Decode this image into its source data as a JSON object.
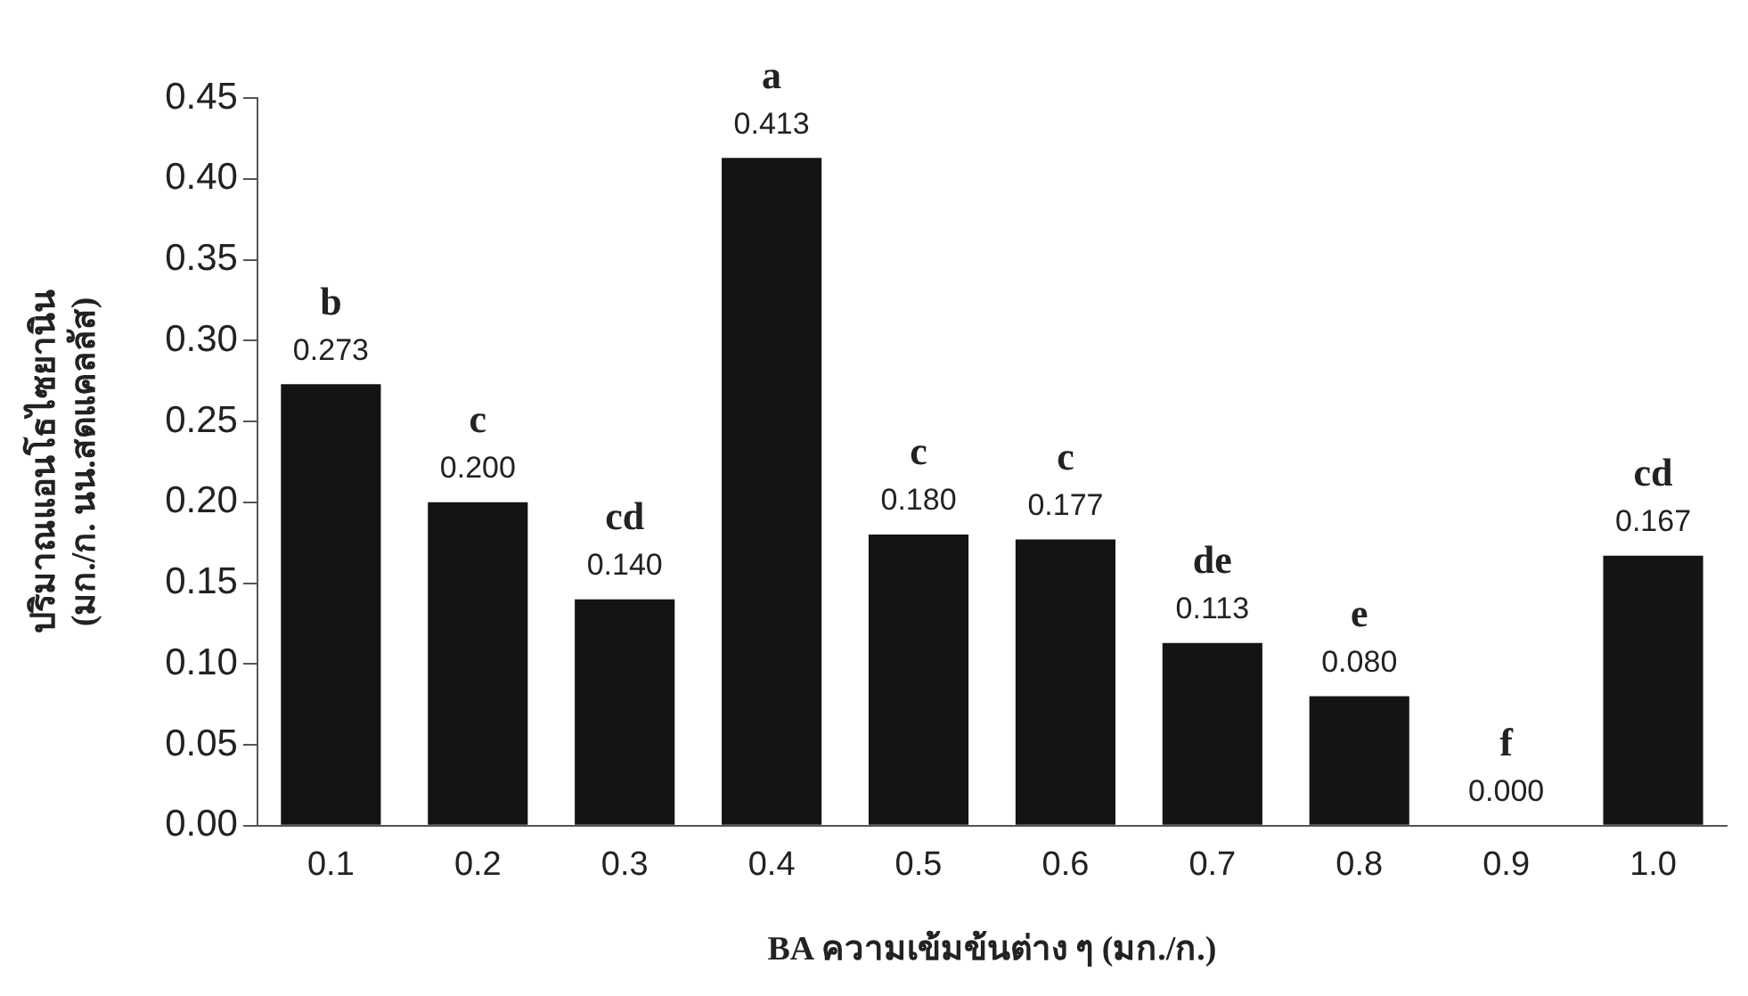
{
  "chart_data": {
    "type": "bar",
    "xlabel": "BA ความเข้มข้นต่าง ๆ (มก./ก.)",
    "ylabel": "ปริมาณแอนโธไซยานิน\n(มก./ก. นน.สดแคลลัส)",
    "categories": [
      "0.1",
      "0.2",
      "0.3",
      "0.4",
      "0.5",
      "0.6",
      "0.7",
      "0.8",
      "0.9",
      "1.0"
    ],
    "values": [
      0.273,
      0.2,
      0.14,
      0.413,
      0.18,
      0.177,
      0.113,
      0.08,
      0,
      0.167
    ],
    "value_labels": [
      "0.273",
      "0.200",
      "0.140",
      "0.413",
      "0.180",
      "0.177",
      "0.113",
      "0.080",
      "0.000",
      "0.167"
    ],
    "color": "#141414",
    "ylim": [
      0,
      0.45
    ],
    "yticks": [
      {
        "value": 0,
        "label": "0.00"
      },
      {
        "value": 0.05,
        "label": "0.05"
      },
      {
        "value": 0.1,
        "label": "0.10"
      },
      {
        "value": 0.15,
        "label": "0.15"
      },
      {
        "value": 0.2,
        "label": "0.20"
      },
      {
        "value": 0.25,
        "label": "0.25"
      },
      {
        "value": 0.3,
        "label": "0.30"
      },
      {
        "value": 0.35,
        "label": "0.35"
      },
      {
        "value": 0.4,
        "label": "0.40"
      },
      {
        "value": 0.45,
        "label": "0.45"
      }
    ],
    "annotations": [
      {
        "text": "b",
        "x": "0.1",
        "y": 0.273
      },
      {
        "text": "c",
        "x": "0.2",
        "y": 0.2
      },
      {
        "text": "cd",
        "x": "0.3",
        "y": 0.14
      },
      {
        "text": "a",
        "x": "0.4",
        "y": 0.413
      },
      {
        "text": "c",
        "x": "0.5",
        "y": 0.18
      },
      {
        "text": "c",
        "x": "0.6",
        "y": 0.177
      },
      {
        "text": "de",
        "x": "0.7",
        "y": 0.113
      },
      {
        "text": "e",
        "x": "0.8",
        "y": 0.08
      },
      {
        "text": "f",
        "x": "0.9",
        "y": 0
      },
      {
        "text": "cd",
        "x": "1.0",
        "y": 0.167
      }
    ],
    "grid": false,
    "legend": false
  }
}
